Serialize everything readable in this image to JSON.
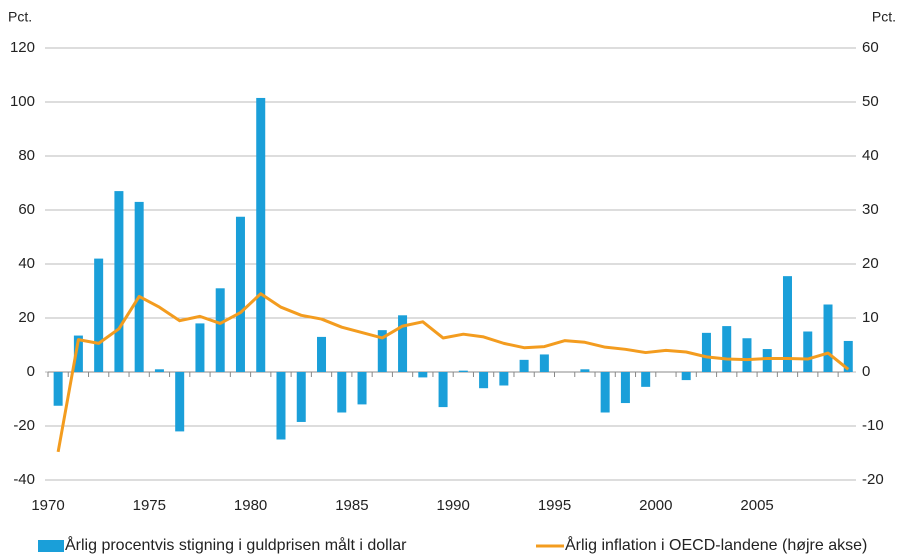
{
  "chart_data": {
    "type": "bar",
    "y_unit_left": "Pct.",
    "y_unit_right": "Pct.",
    "categories": [
      "1970",
      null,
      null,
      null,
      null,
      "1975",
      null,
      null,
      null,
      null,
      "1980",
      null,
      null,
      null,
      null,
      "1985",
      null,
      null,
      null,
      null,
      "1990",
      null,
      null,
      null,
      null,
      "1995",
      null,
      null,
      null,
      null,
      "2000",
      null,
      null,
      null,
      null,
      "2005",
      null,
      null,
      null,
      null
    ],
    "series": [
      {
        "name": "Årlig procentvis stigning i guldprisen målt i dollar",
        "type": "bar",
        "color": "#1a9fd9",
        "values": [
          -12.5,
          13.5,
          42,
          67,
          63,
          1,
          -22,
          18,
          31,
          57.5,
          101.5,
          -25,
          -18.5,
          13,
          -15,
          -12,
          15.5,
          21,
          -2,
          -13,
          0.5,
          -6,
          -5,
          4.5,
          6.5,
          0,
          1,
          -15,
          -11.5,
          -5.5,
          0,
          -3,
          14.5,
          17,
          12.5,
          8.5,
          35.5,
          15,
          25,
          11.5
        ]
      },
      {
        "name": "Årlig inflation i OECD-landene (højre akse)",
        "type": "line",
        "axis": "y2",
        "color": "#f39c1f",
        "values": [
          -14.8,
          6,
          5.3,
          8,
          14,
          12,
          9.5,
          10.3,
          9,
          11,
          14.5,
          12,
          10.5,
          9.8,
          8.3,
          7.3,
          6.3,
          8.5,
          9.3,
          6.3,
          7,
          6.5,
          5.3,
          4.5,
          4.7,
          5.8,
          5.5,
          4.6,
          4.2,
          3.6,
          4,
          3.7,
          2.8,
          2.4,
          2.3,
          2.5,
          2.5,
          2.4,
          3.5,
          0.5
        ]
      }
    ],
    "ylim": [
      -40,
      120
    ],
    "yticks": [
      -40,
      -20,
      0,
      20,
      40,
      60,
      80,
      100,
      120
    ],
    "y2lim": [
      -20,
      60
    ],
    "y2ticks": [
      -20,
      -10,
      0,
      10,
      20,
      30,
      40,
      50,
      60
    ],
    "grid": true
  }
}
